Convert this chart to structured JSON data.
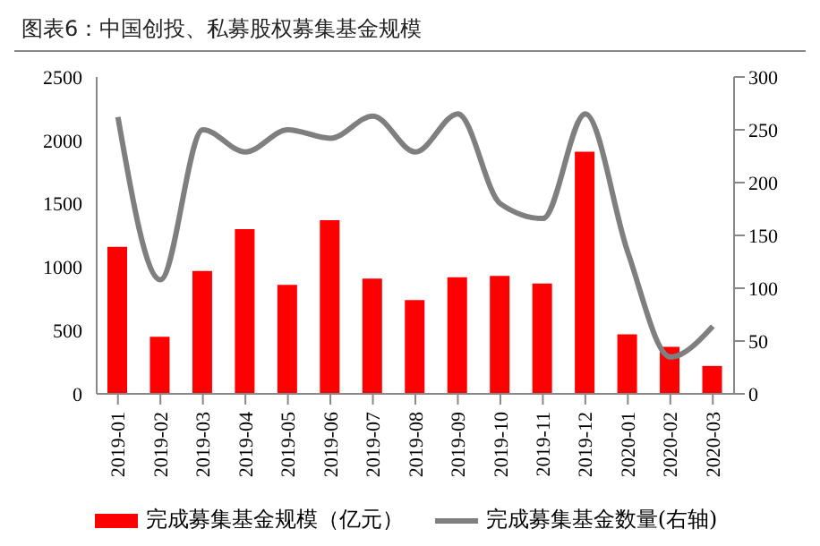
{
  "chart_data": {
    "type": "bar",
    "title": "图表6：中国创投、私募股权募集基金规模",
    "categories": [
      "2019-01",
      "2019-02",
      "2019-03",
      "2019-04",
      "2019-05",
      "2019-06",
      "2019-07",
      "2019-08",
      "2019-09",
      "2019-10",
      "2019-11",
      "2019-12",
      "2020-01",
      "2020-02",
      "2020-03"
    ],
    "series": [
      {
        "name": "完成募集基金规模（亿元）",
        "color": "#ff0000",
        "values": [
          1160,
          450,
          970,
          1300,
          860,
          1370,
          910,
          740,
          920,
          930,
          870,
          1910,
          470,
          370,
          220
        ]
      },
      {
        "name": "完成募集基金数量(右轴)",
        "type": "line",
        "axis": "y2",
        "color": "#7f7f7f",
        "values": [
          262,
          108,
          250,
          229,
          250,
          242,
          263,
          229,
          265,
          180,
          166,
          265,
          134,
          35,
          64
        ]
      }
    ],
    "ylim": [
      0,
      2500
    ],
    "yticks": [
      0,
      500,
      1000,
      1500,
      2000,
      2500
    ],
    "y2lim": [
      0,
      300
    ],
    "y2ticks": [
      0,
      50,
      100,
      150,
      200,
      250,
      300
    ],
    "grid": false,
    "legend": "bottom",
    "marker": "none",
    "line_style": "solid"
  }
}
